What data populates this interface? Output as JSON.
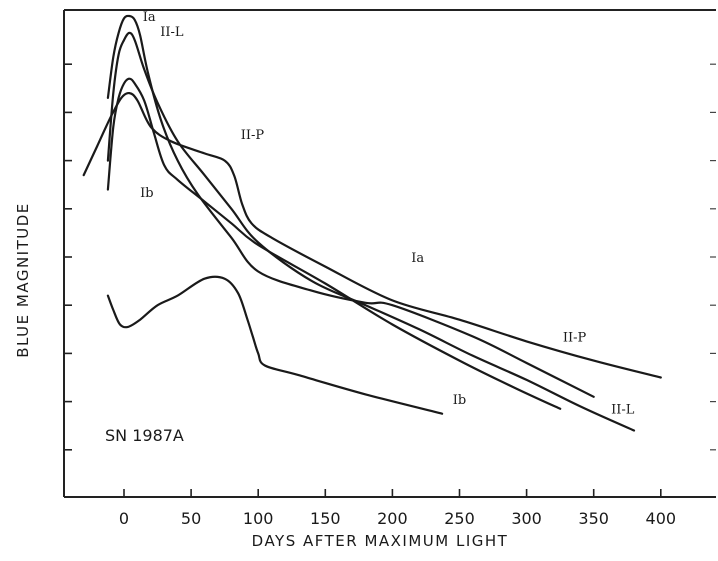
{
  "chart_data": {
    "type": "line",
    "xlabel": "DAYS AFTER MAXIMUM LIGHT",
    "ylabel": "BLUE MAGNITUDE",
    "xlim": [
      -45,
      435
    ],
    "ylim_relative_units": [
      0,
      11
    ],
    "x_ticks": [
      0,
      50,
      100,
      150,
      200,
      250,
      300,
      350,
      400
    ],
    "x_tick_labels": [
      "0",
      "50",
      "100",
      "150",
      "200",
      "250",
      "300",
      "350",
      "400"
    ],
    "y_tick_count": 10,
    "y_tick_labels_visible": false,
    "grid": false,
    "annotation": "SN 1987A",
    "series": [
      {
        "name": "Ia",
        "points": [
          [
            -12,
            1.7
          ],
          [
            -8,
            0.85
          ],
          [
            -4,
            0.35
          ],
          [
            0,
            0.05
          ],
          [
            4,
            0.0
          ],
          [
            8,
            0.08
          ],
          [
            12,
            0.4
          ],
          [
            18,
            1.2
          ],
          [
            28,
            2.2
          ],
          [
            40,
            3.0
          ],
          [
            55,
            3.7
          ],
          [
            80,
            4.6
          ],
          [
            100,
            5.3
          ],
          [
            140,
            5.7
          ],
          [
            180,
            5.95
          ],
          [
            200,
            6.0
          ],
          [
            260,
            6.65
          ],
          [
            300,
            7.2
          ],
          [
            350,
            7.9
          ]
        ],
        "label_text": "Ia",
        "label_positions": [
          {
            "x": 14,
            "y": 0.1
          },
          {
            "x": 214,
            "y": 5.1
          }
        ]
      },
      {
        "name": "II-L",
        "points": [
          [
            -12,
            3.0
          ],
          [
            -8,
            1.6
          ],
          [
            -4,
            0.8
          ],
          [
            0,
            0.5
          ],
          [
            4,
            0.35
          ],
          [
            8,
            0.5
          ],
          [
            15,
            1.1
          ],
          [
            25,
            1.8
          ],
          [
            40,
            2.6
          ],
          [
            60,
            3.3
          ],
          [
            80,
            4.0
          ],
          [
            100,
            4.7
          ],
          [
            140,
            5.5
          ],
          [
            180,
            6.0
          ],
          [
            220,
            6.5
          ],
          [
            260,
            7.05
          ],
          [
            300,
            7.55
          ],
          [
            340,
            8.1
          ],
          [
            380,
            8.6
          ]
        ],
        "label_text": "II-L",
        "label_positions": [
          {
            "x": 27,
            "y": 0.42
          },
          {
            "x": 363,
            "y": 8.25
          }
        ]
      },
      {
        "name": "II-P",
        "points": [
          [
            -30,
            3.3
          ],
          [
            -20,
            2.7
          ],
          [
            -10,
            2.1
          ],
          [
            -2,
            1.7
          ],
          [
            4,
            1.6
          ],
          [
            10,
            1.75
          ],
          [
            20,
            2.3
          ],
          [
            35,
            2.6
          ],
          [
            60,
            2.85
          ],
          [
            75,
            3.0
          ],
          [
            82,
            3.3
          ],
          [
            88,
            3.9
          ],
          [
            95,
            4.3
          ],
          [
            110,
            4.6
          ],
          [
            150,
            5.2
          ],
          [
            200,
            5.9
          ],
          [
            250,
            6.3
          ],
          [
            300,
            6.75
          ],
          [
            350,
            7.15
          ],
          [
            400,
            7.5
          ]
        ],
        "label_text": "II-P",
        "label_positions": [
          {
            "x": 87,
            "y": 2.55
          },
          {
            "x": 327,
            "y": 6.75
          }
        ]
      },
      {
        "name": "Ib",
        "points": [
          [
            -12,
            3.6
          ],
          [
            -8,
            2.3
          ],
          [
            -4,
            1.7
          ],
          [
            0,
            1.4
          ],
          [
            4,
            1.3
          ],
          [
            8,
            1.4
          ],
          [
            15,
            1.75
          ],
          [
            22,
            2.4
          ],
          [
            30,
            3.1
          ],
          [
            40,
            3.4
          ],
          [
            60,
            3.85
          ],
          [
            80,
            4.3
          ],
          [
            100,
            4.75
          ],
          [
            150,
            5.55
          ],
          [
            200,
            6.4
          ],
          [
            250,
            7.15
          ],
          [
            290,
            7.7
          ],
          [
            325,
            8.15
          ]
        ],
        "label_text": "Ib",
        "label_positions": [
          {
            "x": 12,
            "y": 3.75
          },
          {
            "x": 245,
            "y": 8.05
          }
        ]
      },
      {
        "name": "SN 1987A",
        "points": [
          [
            -12,
            5.8
          ],
          [
            -8,
            6.1
          ],
          [
            -3,
            6.4
          ],
          [
            3,
            6.45
          ],
          [
            12,
            6.3
          ],
          [
            25,
            6.0
          ],
          [
            40,
            5.8
          ],
          [
            60,
            5.45
          ],
          [
            75,
            5.45
          ],
          [
            85,
            5.75
          ],
          [
            92,
            6.3
          ],
          [
            96,
            6.65
          ],
          [
            100,
            7.0
          ],
          [
            105,
            7.25
          ],
          [
            130,
            7.45
          ],
          [
            180,
            7.85
          ],
          [
            237,
            8.25
          ]
        ],
        "label_text": "",
        "label_positions": []
      }
    ]
  }
}
